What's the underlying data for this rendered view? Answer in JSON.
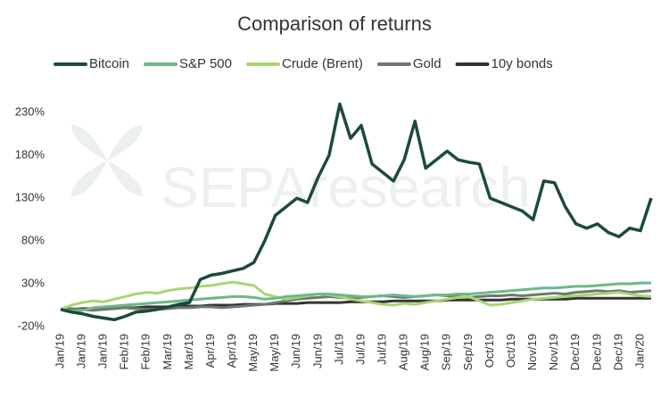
{
  "chart_data": {
    "type": "line",
    "title": "Comparison of returns",
    "watermark": "SEPAresearch",
    "categories": [
      "Jan/19",
      null,
      "Jan/19",
      null,
      "Jan/19",
      null,
      "Feb/19",
      null,
      "Feb/19",
      null,
      "Mar/19",
      null,
      "Mar/19",
      null,
      "Apr/19",
      null,
      "Apr/19",
      null,
      "May/19",
      null,
      "May/19",
      null,
      "Jun/19",
      null,
      "Jun/19",
      null,
      "Jul/19",
      null,
      "Jul/19",
      null,
      "Jul/19",
      null,
      "Aug/19",
      null,
      "Aug/19",
      null,
      "Sep/19",
      null,
      "Sep/19",
      null,
      "Oct/19",
      null,
      "Oct/19",
      null,
      "Nov/19",
      null,
      "Nov/19",
      null,
      "Dec/19",
      null,
      "Dec/19",
      null,
      "Dec/19",
      null,
      "Jan/20",
      null
    ],
    "series": [
      {
        "name": "Bitcoin",
        "color": "#1c4a3c",
        "values": [
          0,
          -3,
          -5,
          -8,
          -10,
          -12,
          -8,
          -3,
          -2,
          0,
          3,
          6,
          8,
          35,
          40,
          42,
          45,
          48,
          55,
          80,
          110,
          120,
          130,
          125,
          155,
          180,
          240,
          200,
          215,
          170,
          160,
          150,
          175,
          220,
          165,
          175,
          185,
          175,
          172,
          170,
          130,
          125,
          120,
          115,
          105,
          150,
          148,
          120,
          100,
          95,
          100,
          90,
          85,
          95,
          92,
          130
        ]
      },
      {
        "name": "S&P 500",
        "color": "#6db88a",
        "values": [
          0,
          -2,
          -1,
          2,
          3,
          4,
          5,
          6,
          7,
          8,
          9,
          10,
          11,
          12,
          13,
          14,
          15,
          15,
          14,
          12,
          13,
          15,
          16,
          17,
          18,
          18,
          17,
          16,
          15,
          15,
          16,
          17,
          16,
          15,
          16,
          17,
          17,
          18,
          18,
          19,
          20,
          21,
          22,
          23,
          24,
          25,
          25,
          26,
          27,
          27,
          28,
          29,
          30,
          30,
          31,
          31
        ]
      },
      {
        "name": "Crude (Brent)",
        "color": "#a8d672",
        "values": [
          0,
          5,
          8,
          10,
          9,
          12,
          15,
          18,
          20,
          19,
          22,
          24,
          25,
          27,
          28,
          30,
          32,
          30,
          28,
          18,
          15,
          12,
          14,
          16,
          18,
          17,
          15,
          12,
          10,
          8,
          6,
          5,
          7,
          6,
          8,
          10,
          12,
          14,
          15,
          10,
          5,
          6,
          8,
          10,
          12,
          13,
          14,
          15,
          16,
          17,
          18,
          19,
          20,
          18,
          16,
          15
        ]
      },
      {
        "name": "Gold",
        "color": "#6b7a6e",
        "values": [
          0,
          1,
          0,
          -1,
          0,
          1,
          2,
          1,
          0,
          0,
          1,
          2,
          2,
          3,
          3,
          2,
          3,
          4,
          5,
          6,
          8,
          10,
          12,
          13,
          14,
          15,
          14,
          13,
          14,
          15,
          16,
          15,
          14,
          15,
          16,
          17,
          16,
          15,
          14,
          15,
          16,
          16,
          17,
          16,
          17,
          18,
          19,
          18,
          20,
          21,
          22,
          21,
          22,
          20,
          21,
          22
        ]
      },
      {
        "name": "10y bonds",
        "color": "#333333",
        "values": [
          0,
          0,
          1,
          1,
          1,
          2,
          2,
          2,
          3,
          3,
          3,
          4,
          4,
          4,
          5,
          5,
          5,
          6,
          6,
          6,
          7,
          7,
          7,
          8,
          8,
          8,
          8,
          9,
          9,
          9,
          9,
          10,
          10,
          10,
          10,
          10,
          11,
          11,
          11,
          11,
          11,
          11,
          12,
          12,
          12,
          12,
          12,
          12,
          13,
          13,
          13,
          13,
          13,
          13,
          13,
          13
        ]
      }
    ],
    "ylim": [
      -20,
      250
    ],
    "yticks": [
      {
        "value": -20,
        "label": "-20%"
      },
      {
        "value": 30,
        "label": "30%"
      },
      {
        "value": 80,
        "label": "80%"
      },
      {
        "value": 130,
        "label": "130%"
      },
      {
        "value": 180,
        "label": "180%"
      },
      {
        "value": 230,
        "label": "230%"
      }
    ],
    "grid": false,
    "legend": "top"
  }
}
